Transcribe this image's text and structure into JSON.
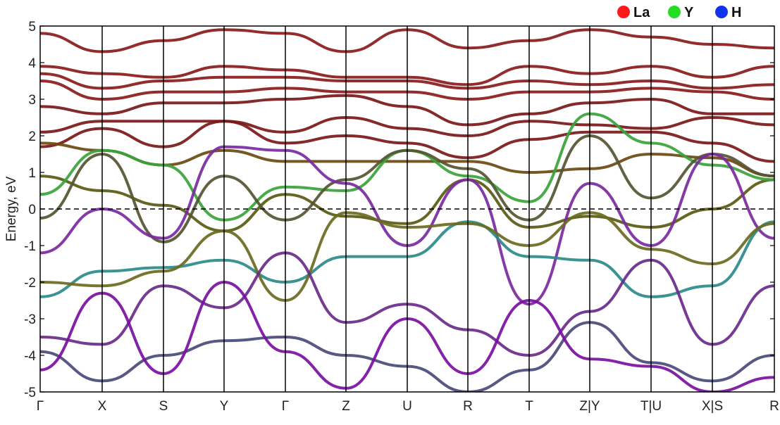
{
  "chart_data": {
    "type": "line",
    "title": "",
    "ylabel": "Energy, eV",
    "xlabel": "",
    "ylim": [
      -5,
      5
    ],
    "yticks": [
      -5,
      -4,
      -3,
      -2,
      -1,
      0,
      1,
      2,
      3,
      4,
      5
    ],
    "grid": false,
    "fermi_level": 0,
    "legend_position": "top-right",
    "legend": [
      {
        "label": "La",
        "color": "#ff1a1a"
      },
      {
        "label": "Y",
        "color": "#22dd22"
      },
      {
        "label": "H",
        "color": "#1133ee"
      }
    ],
    "kpath": [
      {
        "label": "Γ",
        "x": 0
      },
      {
        "label": "X",
        "x": 1
      },
      {
        "label": "S",
        "x": 2
      },
      {
        "label": "Y",
        "x": 3
      },
      {
        "label": "Γ",
        "x": 4
      },
      {
        "label": "Z",
        "x": 5
      },
      {
        "label": "U",
        "x": 6
      },
      {
        "label": "R",
        "x": 7
      },
      {
        "label": "T",
        "x": 8
      },
      {
        "label": "Z|Y",
        "x": 9
      },
      {
        "label": "T|U",
        "x": 10
      },
      {
        "label": "X|S",
        "x": 11
      },
      {
        "label": "R",
        "x": 12
      }
    ],
    "x": [
      0,
      1,
      2,
      3,
      4,
      5,
      6,
      7,
      8,
      9,
      10,
      11,
      12
    ],
    "series": [
      {
        "color": "#8a1a1a",
        "values": [
          4.8,
          4.3,
          4.6,
          4.9,
          4.8,
          4.3,
          4.9,
          4.4,
          4.6,
          4.9,
          4.7,
          4.5,
          4.4
        ]
      },
      {
        "color": "#8a1a1a",
        "values": [
          3.9,
          3.7,
          3.6,
          3.9,
          3.8,
          3.6,
          3.6,
          3.4,
          3.9,
          3.7,
          3.9,
          3.6,
          3.9
        ]
      },
      {
        "color": "#8a1a1a",
        "values": [
          3.7,
          3.3,
          3.5,
          3.6,
          3.6,
          3.5,
          3.5,
          3.3,
          3.5,
          3.4,
          3.5,
          3.3,
          3.4
        ]
      },
      {
        "color": "#8a1a1a",
        "values": [
          3.5,
          3.0,
          3.2,
          3.2,
          3.3,
          3.2,
          3.2,
          3.0,
          3.2,
          3.2,
          3.3,
          3.2,
          3.0
        ]
      },
      {
        "color": "#7a1818",
        "values": [
          2.8,
          2.6,
          2.9,
          2.9,
          3.0,
          3.1,
          2.8,
          2.3,
          2.6,
          2.9,
          3.0,
          2.6,
          2.6
        ]
      },
      {
        "color": "#7a1818",
        "values": [
          2.1,
          2.4,
          2.4,
          2.4,
          2.1,
          2.5,
          2.2,
          2.0,
          2.4,
          2.3,
          2.2,
          2.5,
          2.3
        ]
      },
      {
        "color": "#7a1818",
        "values": [
          1.7,
          2.2,
          1.7,
          2.4,
          1.8,
          2.0,
          1.8,
          1.4,
          1.9,
          2.1,
          2.1,
          1.8,
          1.3
        ]
      },
      {
        "color": "#6a4a12",
        "values": [
          1.8,
          1.6,
          1.2,
          1.6,
          1.3,
          1.3,
          1.3,
          1.3,
          1.0,
          1.1,
          1.5,
          1.4,
          0.9
        ]
      },
      {
        "color": "#5a5a12",
        "values": [
          0.9,
          0.5,
          0.1,
          -0.6,
          0.4,
          -0.2,
          -0.4,
          0.8,
          -0.5,
          -0.2,
          -0.5,
          0.0,
          0.8
        ]
      },
      {
        "color": "#3aa33a",
        "values": [
          0.4,
          1.6,
          1.2,
          -0.3,
          0.6,
          0.5,
          1.6,
          0.9,
          0.2,
          2.6,
          1.8,
          1.2,
          0.8
        ]
      },
      {
        "color": "#555533",
        "values": [
          -0.25,
          1.5,
          -0.9,
          0.9,
          -0.3,
          0.8,
          1.6,
          1.1,
          -0.3,
          2.0,
          0.3,
          1.5,
          0.9
        ]
      },
      {
        "color": "#7a2aa0",
        "values": [
          -1.2,
          0.0,
          -0.8,
          1.7,
          1.6,
          0.7,
          -1.0,
          0.8,
          -2.6,
          0.7,
          -1.0,
          1.5,
          -0.8
        ]
      },
      {
        "color": "#2a8a8a",
        "values": [
          -2.4,
          -1.7,
          -1.6,
          -1.4,
          -2.0,
          -1.3,
          -1.3,
          -0.35,
          -1.3,
          -1.4,
          -2.4,
          -2.1,
          -0.35
        ]
      },
      {
        "color": "#6a6a20",
        "values": [
          -2.0,
          -2.1,
          -1.7,
          -0.6,
          -2.5,
          -0.1,
          -0.5,
          -0.4,
          -1.0,
          -0.1,
          -1.1,
          -1.5,
          -0.4
        ]
      },
      {
        "color": "#6a2a8a",
        "values": [
          -3.5,
          -3.7,
          -2.1,
          -2.7,
          -1.2,
          -3.1,
          -2.6,
          -3.3,
          -4.0,
          -2.8,
          -1.4,
          -3.7,
          -2.1
        ]
      },
      {
        "color": "#4a4a7a",
        "values": [
          -3.9,
          -4.7,
          -4.0,
          -3.6,
          -3.5,
          -4.0,
          -4.3,
          -5.0,
          -4.4,
          -3.1,
          -4.2,
          -4.7,
          -4.0
        ]
      },
      {
        "color": "#7a10a0",
        "values": [
          -4.4,
          -2.3,
          -4.5,
          -2.0,
          -3.9,
          -4.9,
          -3.0,
          -4.5,
          -2.5,
          -4.1,
          -4.3,
          -5.0,
          -4.6
        ]
      }
    ]
  }
}
